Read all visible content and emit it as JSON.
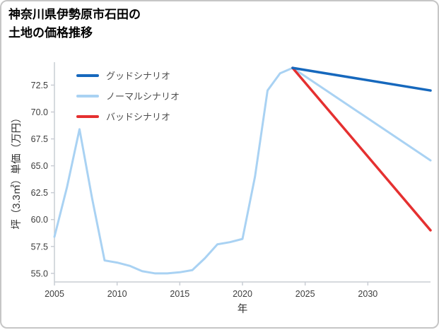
{
  "chart_data": {
    "type": "line",
    "title": "神奈川県伊勢原市石田の土地の価格推移",
    "title_lines": [
      "神奈川県伊勢原市石田の",
      "土地の価格推移"
    ],
    "xlabel": "年",
    "ylabel": "坪（3.3㎡）単価（万円）",
    "xlim": [
      2005,
      2035
    ],
    "ylim": [
      54.2,
      74.5
    ],
    "xtick_values": [
      2005,
      2010,
      2015,
      2020,
      2025,
      2030
    ],
    "xtick_labels": [
      "2005",
      "2010",
      "2015",
      "2020",
      "2025",
      "2030"
    ],
    "ytick_values": [
      55.0,
      57.5,
      60.0,
      62.5,
      65.0,
      67.5,
      70.0,
      72.5
    ],
    "ytick_labels": [
      "55.0",
      "57.5",
      "60.0",
      "62.5",
      "65.0",
      "67.5",
      "70.0",
      "72.5"
    ],
    "grid": false,
    "legend_position": "upper-left-inside",
    "axis_color": "#c9cdd4",
    "tick_color": "#3d3d3d",
    "draw_order": [
      1,
      2,
      0
    ],
    "series": [
      {
        "name": "グッドシナリオ",
        "color": "#1668bd",
        "width": 3.5,
        "x": [
          2024,
          2035
        ],
        "y": [
          74.1,
          72.0
        ]
      },
      {
        "name": "ノーマルシナリオ",
        "color": "#a9d2f3",
        "width": 3,
        "x": [
          2005,
          2006,
          2007,
          2008,
          2009,
          2010,
          2011,
          2012,
          2013,
          2014,
          2015,
          2016,
          2017,
          2018,
          2019,
          2020,
          2021,
          2022,
          2023,
          2024,
          2035
        ],
        "y": [
          58.4,
          63.0,
          68.4,
          62.0,
          56.2,
          56.0,
          55.7,
          55.2,
          55.0,
          55.0,
          55.1,
          55.3,
          56.4,
          57.7,
          57.9,
          58.2,
          64.0,
          72.0,
          73.6,
          74.1,
          65.5
        ]
      },
      {
        "name": "バッドシナリオ",
        "color": "#e53030",
        "width": 3.5,
        "x": [
          2024,
          2035
        ],
        "y": [
          74.1,
          59.0
        ]
      }
    ]
  }
}
